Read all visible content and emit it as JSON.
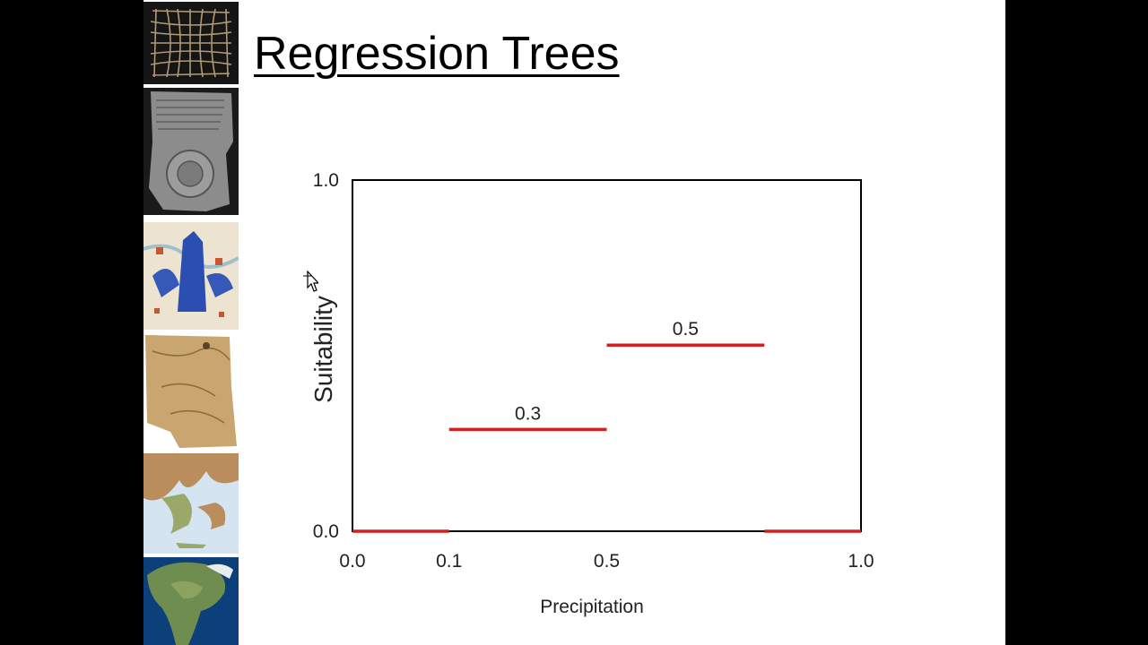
{
  "slide": {
    "title": "Regression Trees"
  },
  "thumbnails": [
    {
      "name": "woven-grid-map-image"
    },
    {
      "name": "clay-tablet-map-image"
    },
    {
      "name": "illuminated-map-image"
    },
    {
      "name": "parchment-map-image"
    },
    {
      "name": "relief-map-image"
    },
    {
      "name": "satellite-continent-image"
    }
  ],
  "colors": {
    "segment": "#d21f1f",
    "axis": "#000000",
    "background": "#ffffff"
  },
  "chart_data": {
    "type": "line",
    "title": "",
    "xlabel": "Precipitation",
    "ylabel": "Suitability",
    "xlim": [
      0.0,
      1.0
    ],
    "ylim": [
      0.0,
      1.0
    ],
    "x_ticks": [
      "0.0",
      "0.1",
      "0.5",
      "1.0"
    ],
    "y_ticks": [
      "1.0",
      "0.0"
    ],
    "grid": false,
    "segments": [
      {
        "x0": 0.0,
        "x1": 0.19,
        "y": 0.0,
        "label": ""
      },
      {
        "x0": 0.19,
        "x1": 0.5,
        "y": 0.29,
        "label": "0.3"
      },
      {
        "x0": 0.5,
        "x1": 0.81,
        "y": 0.53,
        "label": "0.5"
      },
      {
        "x0": 0.81,
        "x1": 1.0,
        "y": 0.0,
        "label": ""
      }
    ]
  }
}
